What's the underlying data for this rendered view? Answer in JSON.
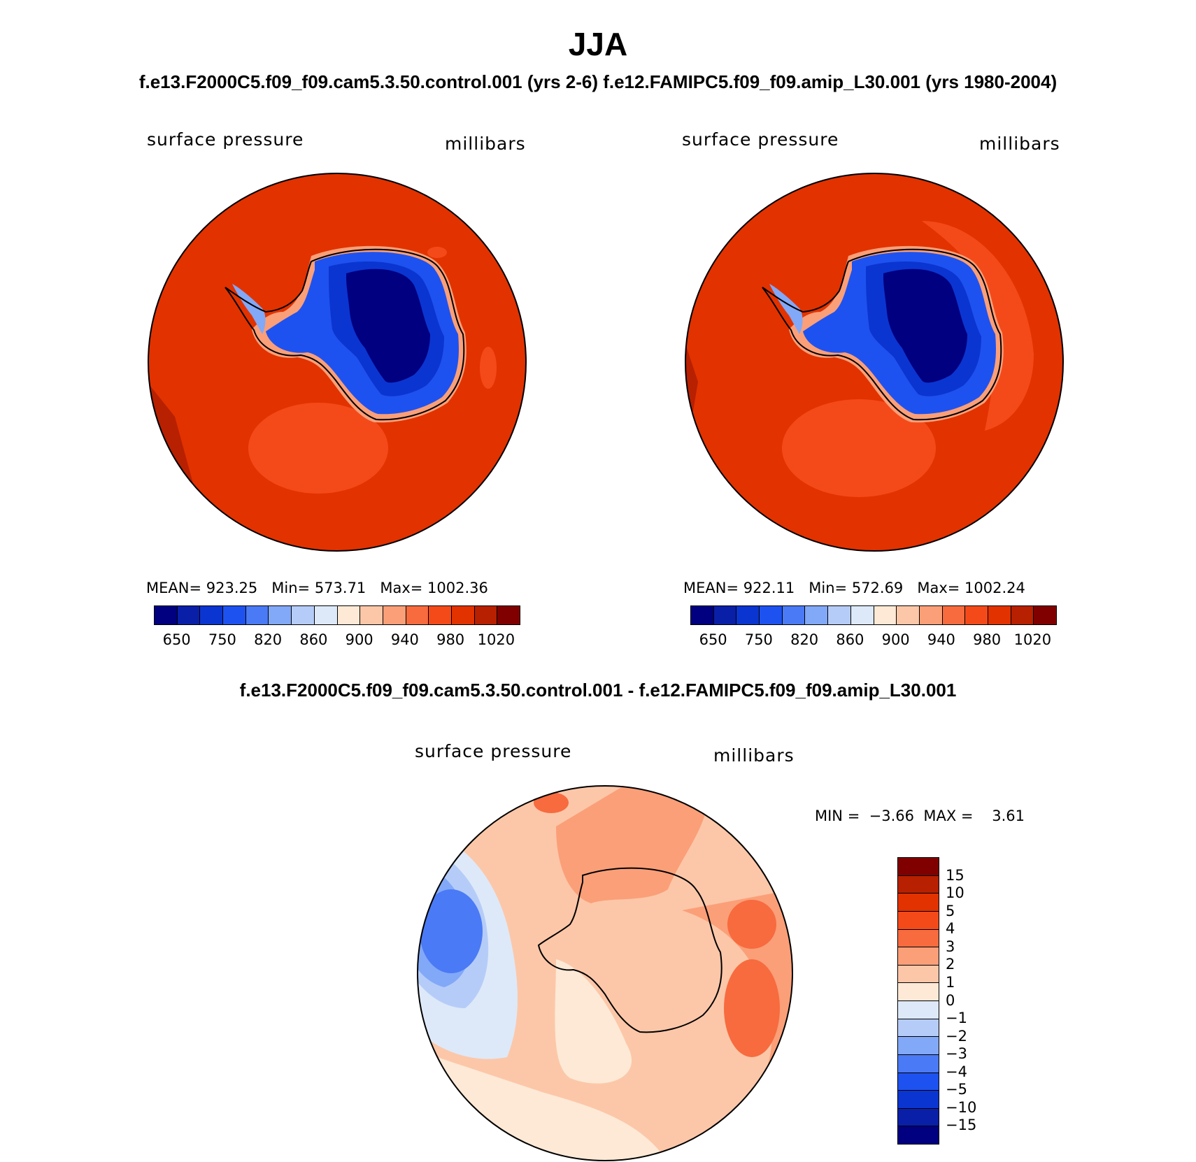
{
  "title": "JJA",
  "subtitle": "f.e13.F2000C5.f09_f09.cam5.3.50.control.001 (yrs 2-6)  f.e12.FAMIPC5.f09_f09.amip_L30.001 (yrs 1980-2004)",
  "panel_left": {
    "variable": "surface pressure",
    "units": "millibars",
    "mean_label": "MEAN=",
    "mean": "923.25",
    "min_label": "Min=",
    "min": "573.71",
    "max_label": "Max=",
    "max": "1002.36"
  },
  "panel_right": {
    "variable": "surface pressure",
    "units": "millibars",
    "mean_label": "MEAN=",
    "mean": "922.11",
    "min_label": "Min=",
    "min": "572.69",
    "max_label": "Max=",
    "max": "1002.24"
  },
  "abs_colorbar": {
    "tick_labels": [
      "650",
      "750",
      "820",
      "860",
      "900",
      "940",
      "980",
      "1020"
    ],
    "colors": [
      "#000080",
      "#0a1fa8",
      "#0b35d0",
      "#1e52f0",
      "#4a7af5",
      "#82a8f8",
      "#b6ccf8",
      "#dde9f8",
      "#fde9d6",
      "#fcc7a8",
      "#fb9f78",
      "#f76b3e",
      "#f44a1a",
      "#e23200",
      "#b72000",
      "#800000"
    ]
  },
  "diff_panel": {
    "title": "f.e13.F2000C5.f09_f09.cam5.3.50.control.001 - f.e12.FAMIPC5.f09_f09.amip_L30.001",
    "variable": "surface pressure",
    "units": "millibars",
    "min_label": "MIN =",
    "min": "−3.66",
    "max_label": "MAX =",
    "max": "3.61"
  },
  "diff_colorbar": {
    "tick_labels": [
      "15",
      "10",
      "5",
      "4",
      "3",
      "2",
      "1",
      "0",
      "−1",
      "−2",
      "−3",
      "−4",
      "−5",
      "−10",
      "−15"
    ],
    "colors": [
      "#800000",
      "#b72000",
      "#e23200",
      "#f44a1a",
      "#f76b3e",
      "#fb9f78",
      "#fcc7a8",
      "#fde9d6",
      "#dde9f8",
      "#b6ccf8",
      "#82a8f8",
      "#4a7af5",
      "#1e52f0",
      "#0b35d0",
      "#0a1fa8",
      "#000080"
    ]
  },
  "chart_data": [
    {
      "type": "heatmap",
      "title": "surface pressure",
      "units": "millibars",
      "dataset": "f.e13.F2000C5.f09_f09.cam5.3.50.control.001 (yrs 2-6)",
      "season": "JJA",
      "mean": 923.25,
      "min": 573.71,
      "max": 1002.36,
      "levels": [
        650,
        750,
        820,
        860,
        900,
        940,
        980,
        1020
      ]
    },
    {
      "type": "heatmap",
      "title": "surface pressure",
      "units": "millibars",
      "dataset": "f.e12.FAMIPC5.f09_f09.amip_L30.001 (yrs 1980-2004)",
      "season": "JJA",
      "mean": 922.11,
      "min": 572.69,
      "max": 1002.24,
      "levels": [
        650,
        750,
        820,
        860,
        900,
        940,
        980,
        1020
      ]
    },
    {
      "type": "heatmap",
      "title": "surface pressure",
      "units": "millibars",
      "dataset": "difference",
      "min": -3.66,
      "max": 3.61,
      "levels": [
        -15,
        -10,
        -5,
        -4,
        -3,
        -2,
        -1,
        0,
        1,
        2,
        3,
        4,
        5,
        10,
        15
      ]
    }
  ]
}
